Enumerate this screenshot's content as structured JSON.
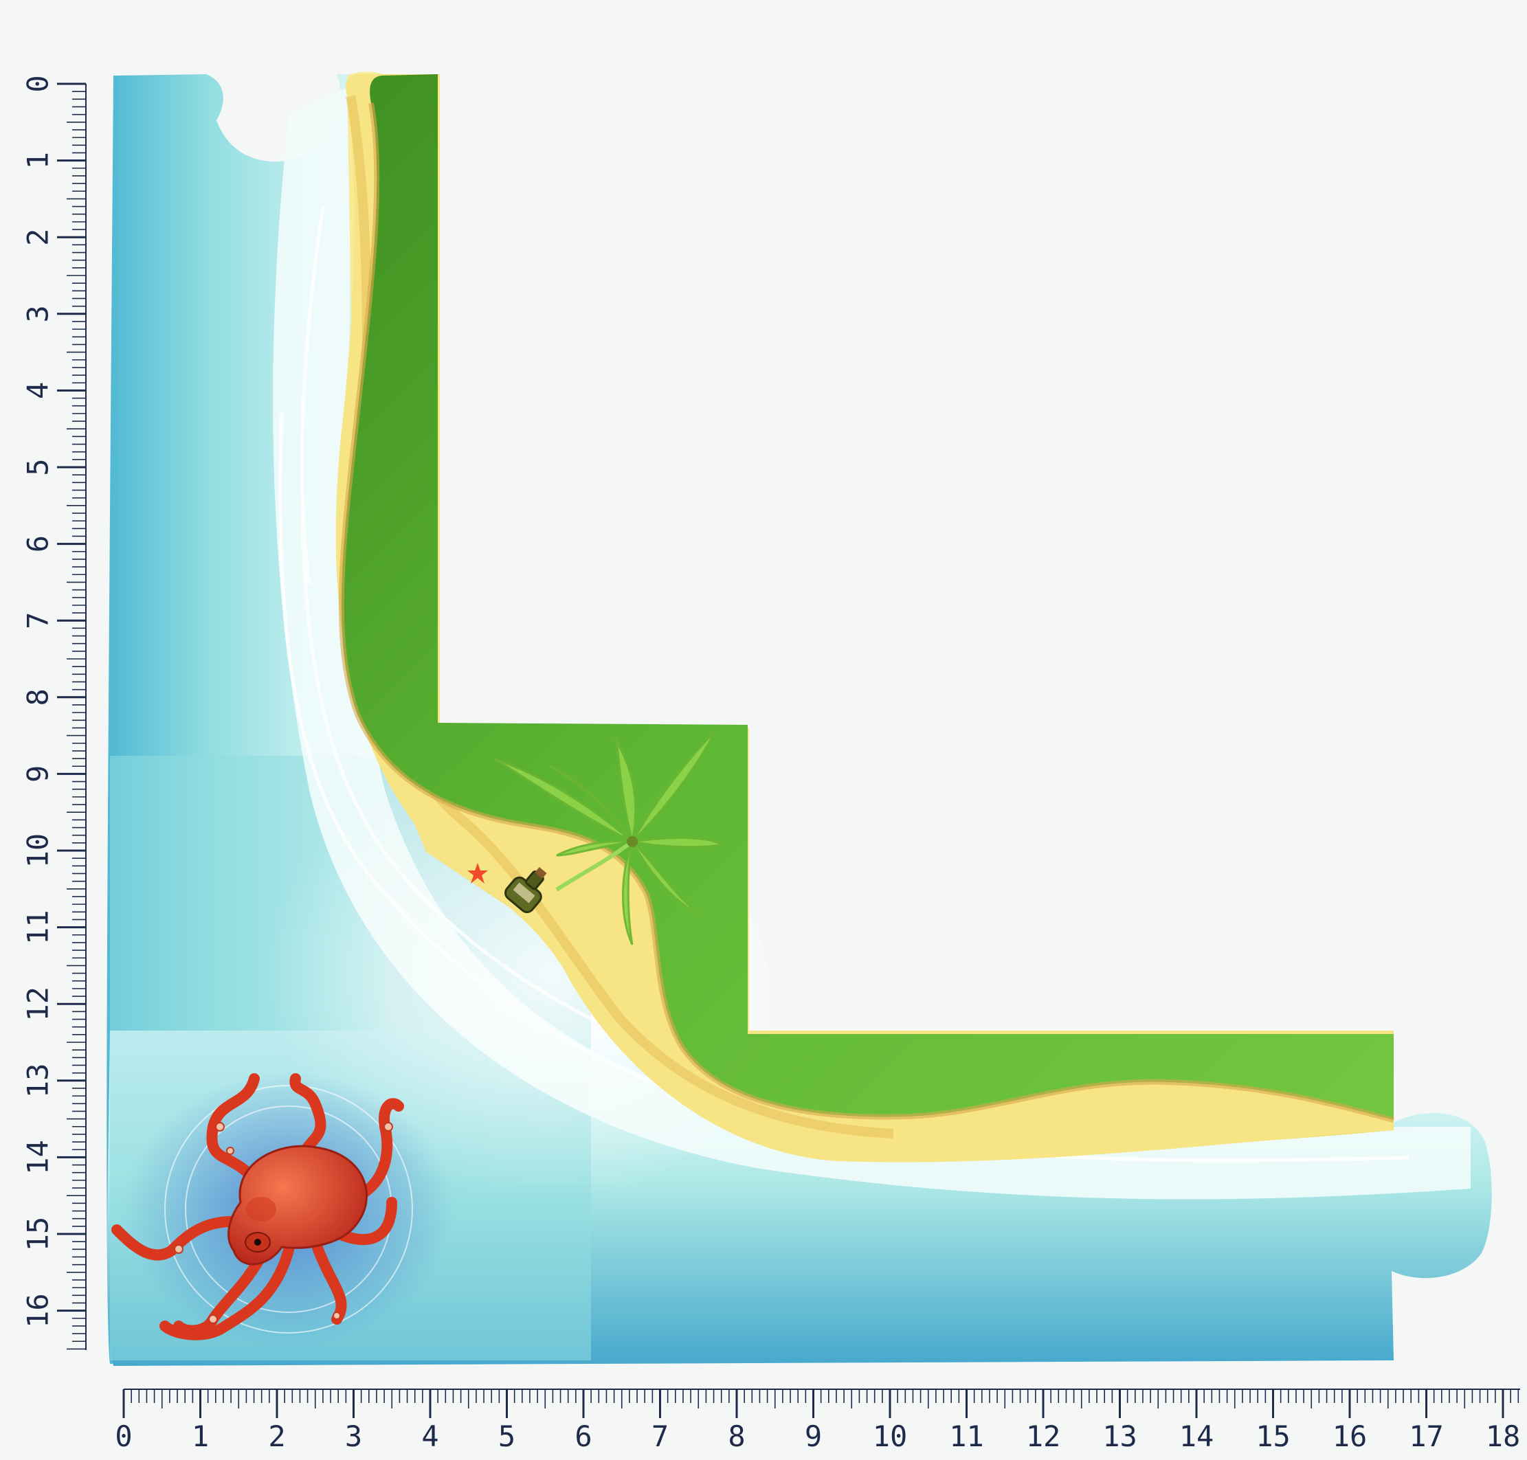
{
  "board": {
    "colors": {
      "background": "#f5f7f6",
      "deep_water": "#4fb3cf",
      "shallow_water": "#bff0ec",
      "foam": "#f3fbff",
      "sand": "#f4e27a",
      "sand_dark": "#e3b24c",
      "grass": "#5cb332",
      "grass_dark": "#3f8f22",
      "octopus": "#e24a2a",
      "ruler_ink": "#1e2a4a"
    },
    "pieces": {
      "octopus_icon": "octopus-icon",
      "palm_icon": "palm-tree-icon",
      "bottle_icon": "message-bottle-icon",
      "starfish_icon": "starfish-icon"
    }
  },
  "rulers": {
    "horizontal_labels": [
      "0",
      "1",
      "2",
      "3",
      "4",
      "5",
      "6",
      "7",
      "8",
      "9",
      "10",
      "11",
      "12",
      "13",
      "14",
      "15",
      "16",
      "17",
      "18"
    ],
    "vertical_labels": [
      "0",
      "1",
      "2",
      "3",
      "4",
      "5",
      "6",
      "7",
      "8",
      "9",
      "10",
      "11",
      "12",
      "13",
      "14",
      "15",
      "16"
    ],
    "minor_ticks_per_unit": 10
  }
}
